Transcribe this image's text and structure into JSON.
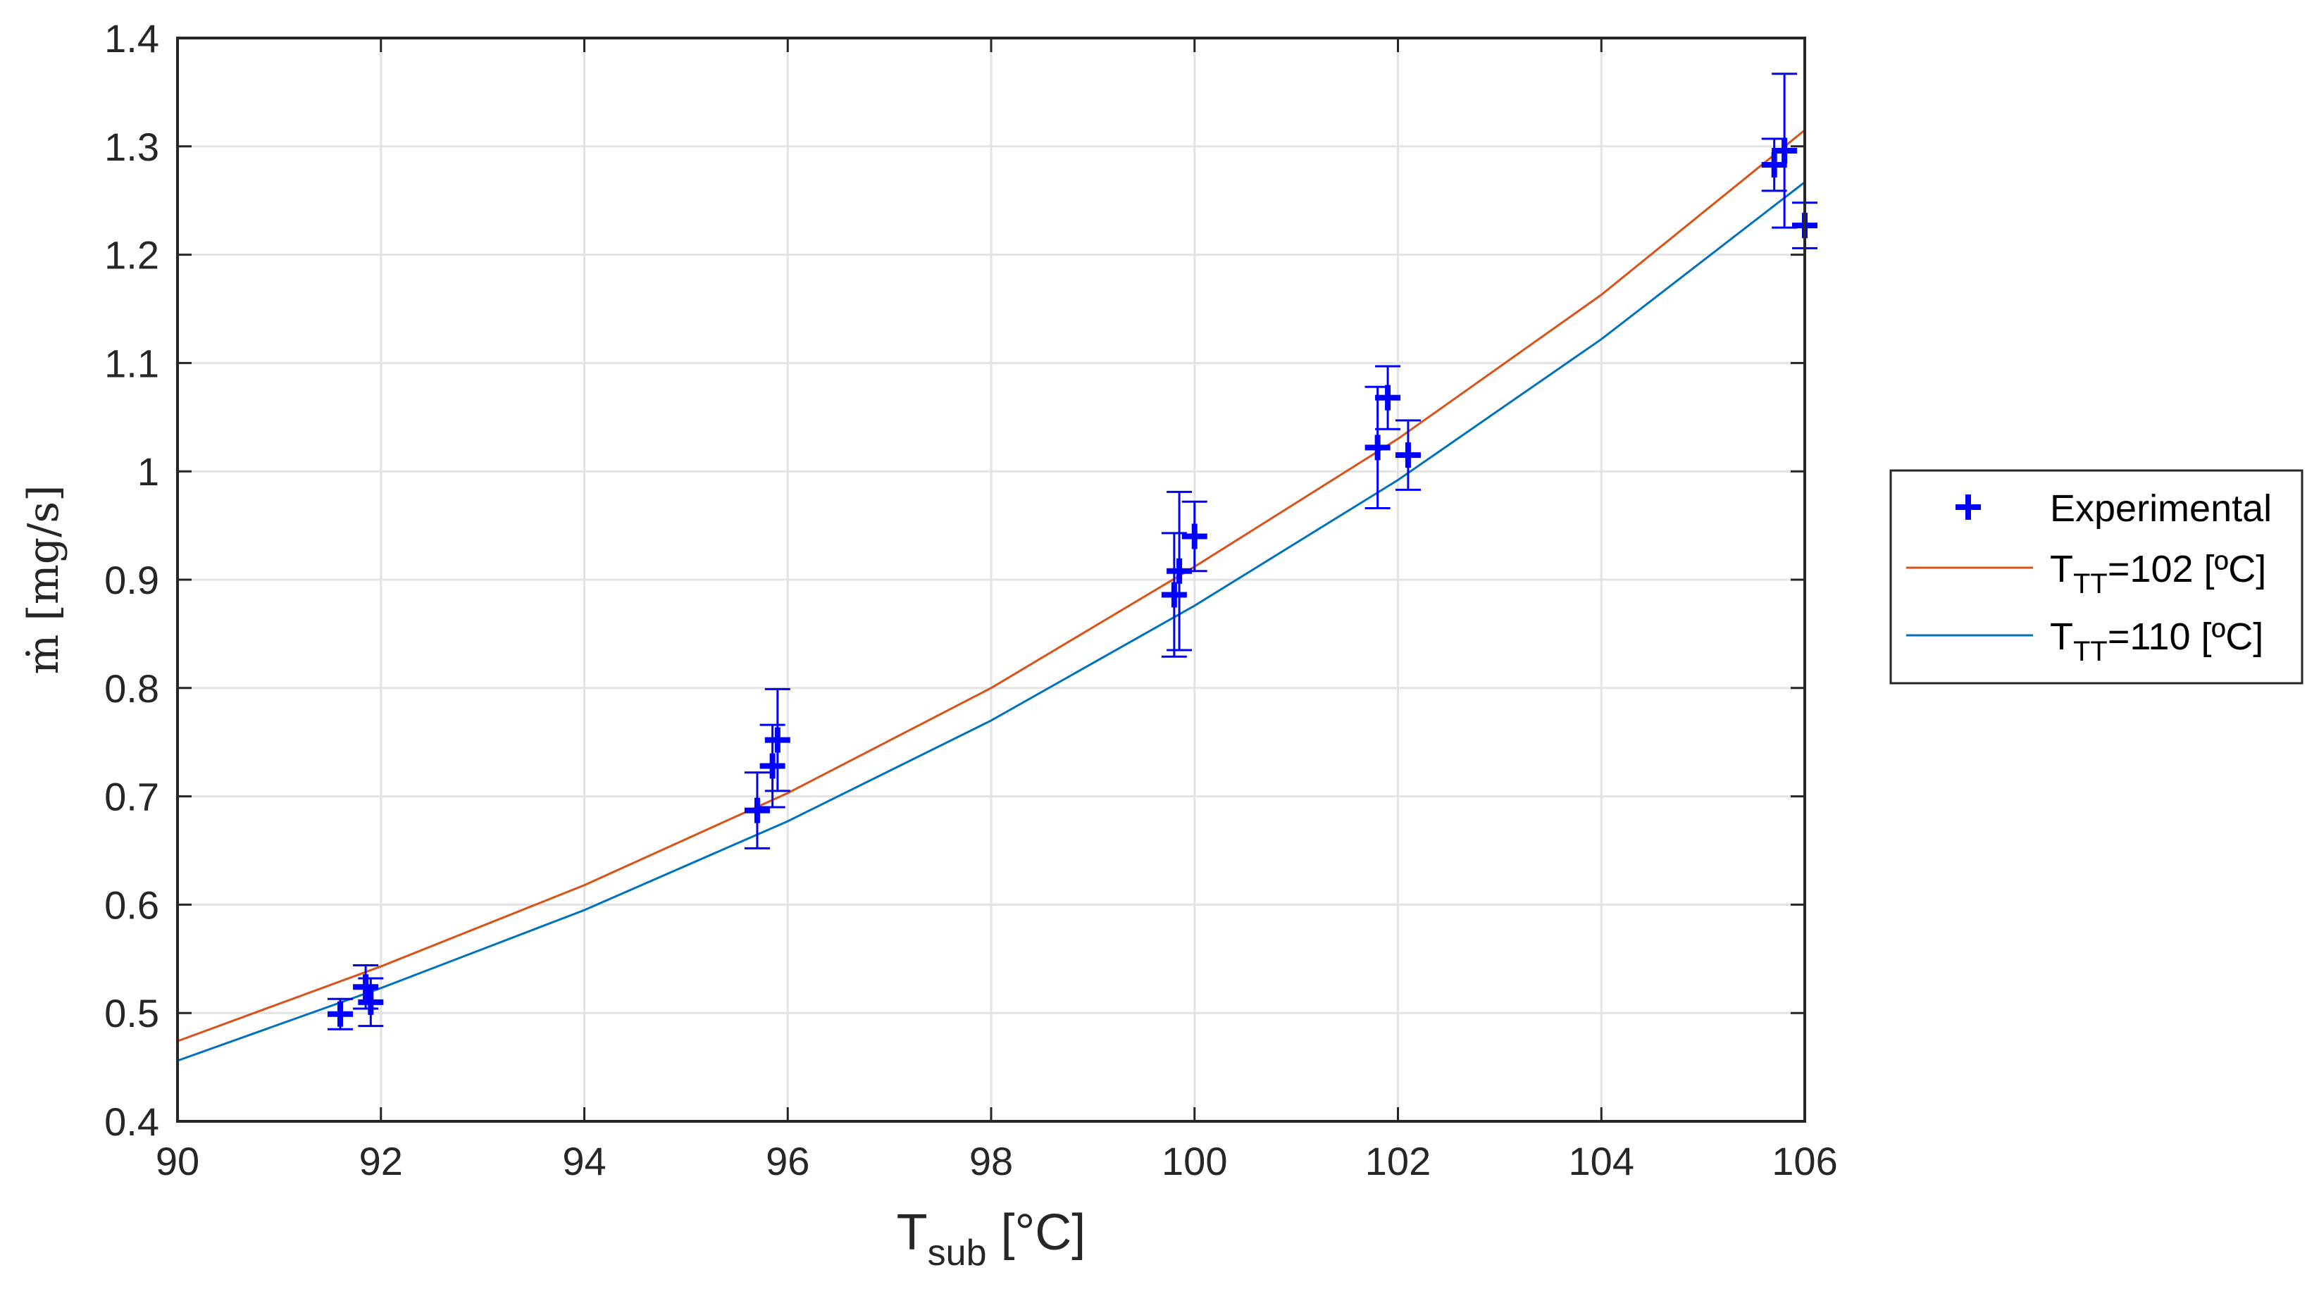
{
  "chart_data": {
    "type": "line",
    "xlabel": "T",
    "xlabel_sub": "sub",
    "xlabel_unit": " [°C]",
    "ylabel": "ṁ [mg/s]",
    "xlim": [
      90,
      106
    ],
    "ylim": [
      0.4,
      1.4
    ],
    "xticks": [
      90,
      92,
      94,
      96,
      98,
      100,
      102,
      104,
      106
    ],
    "yticks": [
      0.4,
      0.5,
      0.6,
      0.7,
      0.8,
      0.9,
      1,
      1.1,
      1.2,
      1.3,
      1.4
    ],
    "xtick_labels": [
      "90",
      "92",
      "94",
      "96",
      "98",
      "100",
      "102",
      "104",
      "106"
    ],
    "ytick_labels": [
      "0.4",
      "0.5",
      "0.6",
      "0.7",
      "0.8",
      "0.9",
      "1",
      "1.1",
      "1.2",
      "1.3",
      "1.4"
    ],
    "grid": true,
    "legend_position": "outside-right",
    "legend": [
      {
        "label": "Experimental",
        "color": "#0000ff",
        "marker": "+"
      },
      {
        "label": "T",
        "sub": "TT",
        "suffix": "=102 [ºC]",
        "color": "#d95319"
      },
      {
        "label": "T",
        "sub": "TT",
        "suffix": "=110 [ºC]",
        "color": "#0072bd"
      }
    ],
    "series": [
      {
        "name": "Experimental",
        "type": "scatter-errorbar",
        "color": "#0000ff",
        "points": [
          {
            "x": 91.6,
            "y": 0.499,
            "err": 0.014
          },
          {
            "x": 91.85,
            "y": 0.524,
            "err": 0.02
          },
          {
            "x": 91.9,
            "y": 0.51,
            "err": 0.022
          },
          {
            "x": 95.7,
            "y": 0.687,
            "err": 0.035
          },
          {
            "x": 95.85,
            "y": 0.728,
            "err": 0.038
          },
          {
            "x": 95.9,
            "y": 0.752,
            "err": 0.047
          },
          {
            "x": 99.8,
            "y": 0.886,
            "err": 0.057
          },
          {
            "x": 99.85,
            "y": 0.908,
            "err": 0.073
          },
          {
            "x": 100.0,
            "y": 0.94,
            "err": 0.032
          },
          {
            "x": 101.8,
            "y": 1.022,
            "err": 0.056
          },
          {
            "x": 101.9,
            "y": 1.068,
            "err": 0.029
          },
          {
            "x": 102.1,
            "y": 1.015,
            "err": 0.032
          },
          {
            "x": 105.7,
            "y": 1.283,
            "err": 0.024
          },
          {
            "x": 105.8,
            "y": 1.296,
            "err": 0.071
          },
          {
            "x": 106.0,
            "y": 1.227,
            "err": 0.021
          }
        ]
      },
      {
        "name": "T_TT=102 [ºC]",
        "type": "line",
        "color": "#d95319",
        "x": [
          90,
          92,
          94,
          96,
          98,
          100,
          102,
          104,
          106
        ],
        "y": [
          0.474,
          0.543,
          0.618,
          0.703,
          0.8,
          0.912,
          1.03,
          1.163,
          1.315
        ]
      },
      {
        "name": "T_TT=110 [ºC]",
        "type": "line",
        "color": "#0072bd",
        "x": [
          90,
          92,
          94,
          96,
          98,
          100,
          102,
          104,
          106
        ],
        "y": [
          0.456,
          0.523,
          0.595,
          0.677,
          0.77,
          0.876,
          0.992,
          1.122,
          1.267
        ]
      }
    ]
  }
}
